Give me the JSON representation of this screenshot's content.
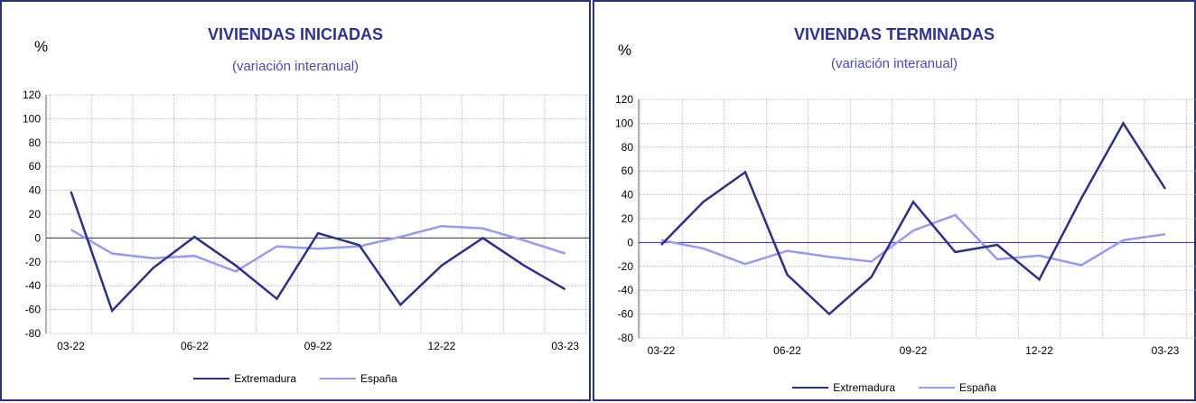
{
  "colors": {
    "border": "#2b2f7e",
    "title": "#2e3192",
    "extremadura": "#2e3086",
    "espana": "#9999f0"
  },
  "chart_data": [
    {
      "type": "line",
      "title": "VIVIENDAS INICIADAS",
      "subtitle": "(variación interanual)",
      "ylabel": "%",
      "ylim": [
        -80,
        120
      ],
      "yticks": [
        -80,
        -60,
        -40,
        -20,
        0,
        20,
        40,
        60,
        80,
        100,
        120
      ],
      "x": [
        "03-22",
        "04-22",
        "05-22",
        "06-22",
        "07-22",
        "08-22",
        "09-22",
        "10-22",
        "11-22",
        "12-22",
        "01-23",
        "02-23",
        "03-23"
      ],
      "xtick_labels": [
        "03-22",
        "06-22",
        "09-22",
        "12-22",
        "03-23"
      ],
      "grid": true,
      "legend_position": "bottom",
      "series": [
        {
          "name": "Extremadura",
          "color": "#2e3086",
          "values": [
            39,
            -61,
            -25,
            1,
            -23,
            -51,
            4,
            -6,
            -56,
            -23,
            0,
            -23,
            -43
          ]
        },
        {
          "name": "España",
          "color": "#9999f0",
          "values": [
            7,
            -13,
            -17,
            -15,
            -28,
            -7,
            -9,
            -7,
            1,
            10,
            8,
            -2,
            -13
          ]
        }
      ]
    },
    {
      "type": "line",
      "title": "VIVIENDAS TERMINADAS",
      "subtitle": "(variación interanual)",
      "ylabel": "%",
      "ylim": [
        -80,
        120
      ],
      "yticks": [
        -80,
        -60,
        -40,
        -20,
        0,
        20,
        40,
        60,
        80,
        100,
        120
      ],
      "x": [
        "03-22",
        "04-22",
        "05-22",
        "06-22",
        "07-22",
        "08-22",
        "09-22",
        "10-22",
        "11-22",
        "12-22",
        "01-23",
        "02-23",
        "03-23"
      ],
      "xtick_labels": [
        "03-22",
        "06-22",
        "09-22",
        "12-22",
        "03-23"
      ],
      "grid": true,
      "legend_position": "bottom",
      "series": [
        {
          "name": "Extremadura",
          "color": "#2e3086",
          "values": [
            -2,
            34,
            59,
            -27,
            -60,
            -29,
            34,
            -8,
            -2,
            -31,
            37,
            100,
            45
          ]
        },
        {
          "name": "España",
          "color": "#9999f0",
          "values": [
            2,
            -5,
            -18,
            -7,
            -12,
            -16,
            10,
            23,
            -14,
            -11,
            -19,
            2,
            7
          ]
        }
      ]
    }
  ]
}
